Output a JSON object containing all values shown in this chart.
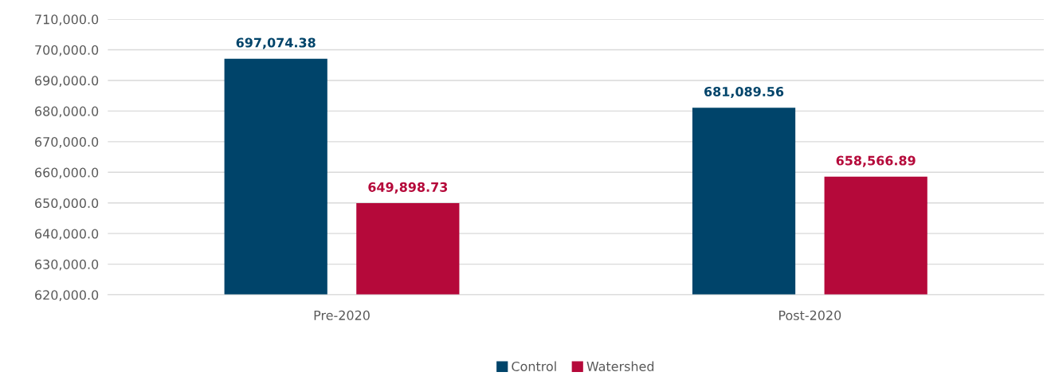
{
  "chart_data": {
    "type": "bar",
    "categories": [
      "Pre-2020",
      "Post-2020"
    ],
    "series": [
      {
        "name": "Control",
        "color": "#00446a",
        "values": [
          697074.38,
          681089.56
        ],
        "value_labels": [
          "697,074.38",
          "681,089.56"
        ]
      },
      {
        "name": "Watershed",
        "color": "#b5093a",
        "values": [
          649898.73,
          658566.89
        ],
        "value_labels": [
          "649,898.73",
          "658,566.89"
        ]
      }
    ],
    "ylim": [
      620000,
      710000
    ],
    "yticks": [
      {
        "value": 620000,
        "label": "620,000.0"
      },
      {
        "value": 630000,
        "label": "630,000.0"
      },
      {
        "value": 640000,
        "label": "640,000.0"
      },
      {
        "value": 650000,
        "label": "650,000.0"
      },
      {
        "value": 660000,
        "label": "660,000.0"
      },
      {
        "value": 670000,
        "label": "670,000.0"
      },
      {
        "value": 680000,
        "label": "680,000.0"
      },
      {
        "value": 690000,
        "label": "690,000.0"
      },
      {
        "value": 700000,
        "label": "700,000.0"
      },
      {
        "value": 710000,
        "label": "710,000.0"
      }
    ],
    "grid": "y",
    "legend": "bottom"
  }
}
